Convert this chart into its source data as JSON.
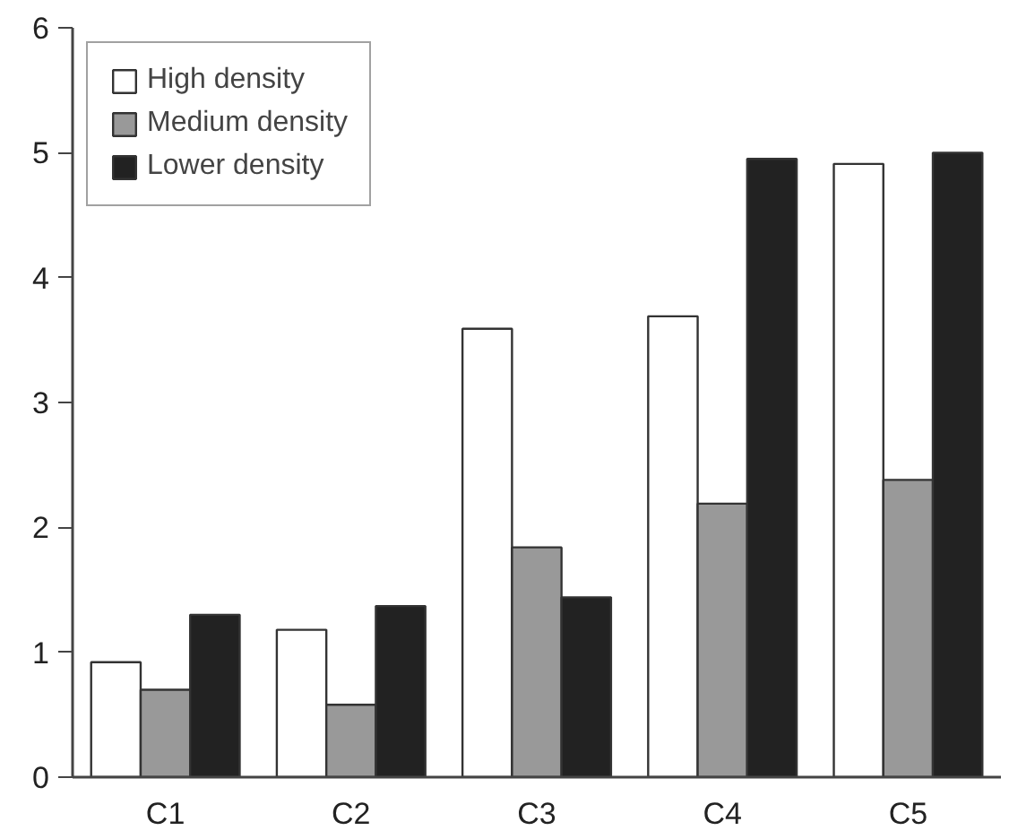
{
  "chart_data": {
    "type": "bar",
    "categories": [
      "C1",
      "C2",
      "C3",
      "C4",
      "C5"
    ],
    "series": [
      {
        "name": "High density",
        "color": "#ffffff",
        "values": [
          0.92,
          1.18,
          3.59,
          3.69,
          4.91
        ]
      },
      {
        "name": "Medium density",
        "color": "#999999",
        "values": [
          0.7,
          0.58,
          1.84,
          2.19,
          2.38
        ]
      },
      {
        "name": "Lower density",
        "color": "#222222",
        "values": [
          1.3,
          1.37,
          1.44,
          4.95,
          5.0
        ]
      }
    ],
    "ylim": [
      0,
      6
    ],
    "yticks": [
      0,
      1,
      2,
      3,
      4,
      5,
      6
    ],
    "grid": false,
    "legend": "top left"
  }
}
